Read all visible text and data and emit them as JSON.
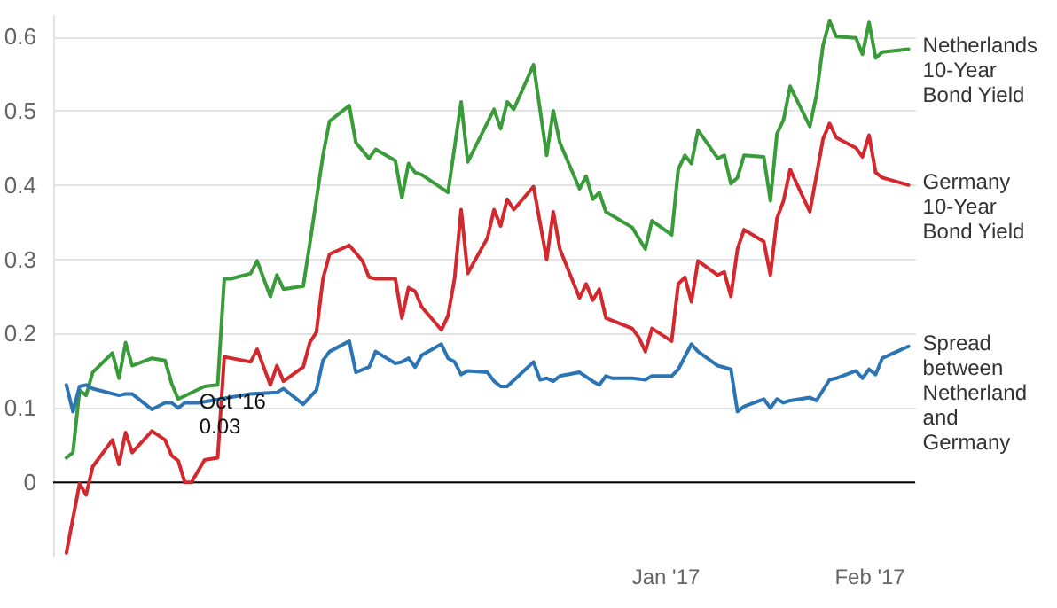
{
  "chart_data": {
    "type": "line",
    "xlim": [
      "2016-09-30",
      "2017-02-08"
    ],
    "xticks": [
      {
        "value": "2017-01-01",
        "label": "Jan '17"
      },
      {
        "value": "2017-02-01",
        "label": "Feb '17"
      }
    ],
    "ylim": [
      -0.1,
      0.63
    ],
    "yticks": [
      0,
      0.1,
      0.2,
      0.3,
      0.4,
      0.5,
      0.6
    ],
    "grid": "y",
    "ref_lines": [
      {
        "axis": "y",
        "value": 0,
        "color": "#000000"
      }
    ],
    "annotations": [
      {
        "text": "Oct '16\n0.03",
        "x": "2016-10-23",
        "y": 0.03
      }
    ],
    "series": [
      {
        "name": "Netherlands 10-Year Bond Yield",
        "color": "#3a9b3a",
        "x": [
          "2016-10-02",
          "2016-10-03",
          "2016-10-04",
          "2016-10-05",
          "2016-10-06",
          "2016-10-09",
          "2016-10-10",
          "2016-10-11",
          "2016-10-12",
          "2016-10-15",
          "2016-10-17",
          "2016-10-18",
          "2016-10-19",
          "2016-10-23",
          "2016-10-25",
          "2016-10-26",
          "2016-10-27",
          "2016-10-30",
          "2016-10-31",
          "2016-11-02",
          "2016-11-03",
          "2016-11-04",
          "2016-11-07",
          "2016-11-08",
          "2016-11-10",
          "2016-11-11",
          "2016-11-14",
          "2016-11-15",
          "2016-11-17",
          "2016-11-18",
          "2016-11-21",
          "2016-11-22",
          "2016-11-23",
          "2016-11-24",
          "2016-11-25",
          "2016-11-29",
          "2016-12-01",
          "2016-12-02",
          "2016-12-06",
          "2016-12-07",
          "2016-12-08",
          "2016-12-09",
          "2016-12-12",
          "2016-12-14",
          "2016-12-15",
          "2016-12-16",
          "2016-12-19",
          "2016-12-20",
          "2016-12-21",
          "2016-12-22",
          "2016-12-23",
          "2016-12-27",
          "2016-12-29",
          "2016-12-30",
          "2017-01-02",
          "2017-01-03",
          "2017-01-04",
          "2017-01-05",
          "2017-01-06",
          "2017-01-09",
          "2017-01-10",
          "2017-01-11",
          "2017-01-12",
          "2017-01-13",
          "2017-01-16",
          "2017-01-17",
          "2017-01-18",
          "2017-01-19",
          "2017-01-20",
          "2017-01-23",
          "2017-01-24",
          "2017-01-25",
          "2017-01-26",
          "2017-01-27",
          "2017-01-30",
          "2017-01-31",
          "2017-02-01",
          "2017-02-02",
          "2017-02-03",
          "2017-02-07"
        ],
        "values": [
          0.033,
          0.04,
          0.124,
          0.117,
          0.148,
          0.174,
          0.14,
          0.188,
          0.157,
          0.167,
          0.164,
          0.133,
          0.112,
          0.129,
          0.131,
          0.274,
          0.274,
          0.281,
          0.298,
          0.25,
          0.279,
          0.26,
          0.264,
          0.321,
          0.44,
          0.486,
          0.507,
          0.457,
          0.436,
          0.448,
          0.433,
          0.383,
          0.429,
          0.417,
          0.414,
          0.39,
          0.512,
          0.431,
          0.502,
          0.476,
          0.512,
          0.502,
          0.562,
          0.44,
          0.5,
          0.457,
          0.395,
          0.412,
          0.381,
          0.39,
          0.364,
          0.343,
          0.314,
          0.352,
          0.333,
          0.421,
          0.44,
          0.429,
          0.474,
          0.436,
          0.44,
          0.402,
          0.41,
          0.44,
          0.438,
          0.379,
          0.469,
          0.488,
          0.533,
          0.479,
          0.521,
          0.588,
          0.621,
          0.6,
          0.598,
          0.576,
          0.619,
          0.571,
          0.579,
          0.583
        ]
      },
      {
        "name": "Germany 10-Year Bond Yield",
        "color": "#d2282e",
        "x": [
          "2016-10-02",
          "2016-10-04",
          "2016-10-05",
          "2016-10-06",
          "2016-10-09",
          "2016-10-10",
          "2016-10-11",
          "2016-10-12",
          "2016-10-15",
          "2016-10-17",
          "2016-10-18",
          "2016-10-19",
          "2016-10-20",
          "2016-10-21",
          "2016-10-23",
          "2016-10-25",
          "2016-10-26",
          "2016-10-30",
          "2016-10-31",
          "2016-11-02",
          "2016-11-03",
          "2016-11-04",
          "2016-11-07",
          "2016-11-08",
          "2016-11-09",
          "2016-11-10",
          "2016-11-11",
          "2016-11-14",
          "2016-11-16",
          "2016-11-17",
          "2016-11-18",
          "2016-11-21",
          "2016-11-22",
          "2016-11-23",
          "2016-11-24",
          "2016-11-25",
          "2016-11-28",
          "2016-11-29",
          "2016-11-30",
          "2016-12-01",
          "2016-12-02",
          "2016-12-05",
          "2016-12-06",
          "2016-12-07",
          "2016-12-08",
          "2016-12-09",
          "2016-12-12",
          "2016-12-14",
          "2016-12-15",
          "2016-12-16",
          "2016-12-19",
          "2016-12-20",
          "2016-12-21",
          "2016-12-22",
          "2016-12-23",
          "2016-12-27",
          "2016-12-28",
          "2016-12-29",
          "2016-12-30",
          "2017-01-02",
          "2017-01-03",
          "2017-01-04",
          "2017-01-05",
          "2017-01-06",
          "2017-01-09",
          "2017-01-10",
          "2017-01-11",
          "2017-01-12",
          "2017-01-13",
          "2017-01-16",
          "2017-01-17",
          "2017-01-18",
          "2017-01-19",
          "2017-01-20",
          "2017-01-23",
          "2017-01-25",
          "2017-01-26",
          "2017-01-27",
          "2017-01-30",
          "2017-01-31",
          "2017-02-01",
          "2017-02-02",
          "2017-02-03",
          "2017-02-07"
        ],
        "values": [
          -0.095,
          -0.002,
          -0.017,
          0.021,
          0.057,
          0.024,
          0.067,
          0.04,
          0.069,
          0.057,
          0.036,
          0.029,
          0.0,
          0.0,
          0.03,
          0.033,
          0.169,
          0.162,
          0.179,
          0.131,
          0.157,
          0.136,
          0.155,
          0.188,
          0.202,
          0.274,
          0.307,
          0.319,
          0.298,
          0.276,
          0.274,
          0.274,
          0.221,
          0.262,
          0.257,
          0.236,
          0.205,
          0.224,
          0.274,
          0.367,
          0.281,
          0.329,
          0.367,
          0.345,
          0.381,
          0.367,
          0.398,
          0.3,
          0.364,
          0.314,
          0.248,
          0.267,
          0.245,
          0.26,
          0.221,
          0.207,
          0.195,
          0.176,
          0.207,
          0.19,
          0.267,
          0.276,
          0.243,
          0.298,
          0.279,
          0.283,
          0.25,
          0.314,
          0.34,
          0.324,
          0.279,
          0.355,
          0.379,
          0.421,
          0.364,
          0.462,
          0.483,
          0.464,
          0.45,
          0.438,
          0.467,
          0.417,
          0.41,
          0.4
        ]
      },
      {
        "name": "Spread between Netherland and Germany",
        "color": "#2c75b5",
        "x": [
          "2016-10-02",
          "2016-10-03",
          "2016-10-04",
          "2016-10-05",
          "2016-10-06",
          "2016-10-10",
          "2016-10-11",
          "2016-10-12",
          "2016-10-15",
          "2016-10-17",
          "2016-10-18",
          "2016-10-19",
          "2016-10-20",
          "2016-10-22",
          "2016-10-30",
          "2016-11-03",
          "2016-11-04",
          "2016-11-07",
          "2016-11-09",
          "2016-11-10",
          "2016-11-11",
          "2016-11-14",
          "2016-11-15",
          "2016-11-17",
          "2016-11-18",
          "2016-11-21",
          "2016-11-22",
          "2016-11-23",
          "2016-11-24",
          "2016-11-25",
          "2016-11-28",
          "2016-11-29",
          "2016-11-30",
          "2016-12-01",
          "2016-12-02",
          "2016-12-05",
          "2016-12-06",
          "2016-12-07",
          "2016-12-08",
          "2016-12-12",
          "2016-12-13",
          "2016-12-14",
          "2016-12-15",
          "2016-12-16",
          "2016-12-19",
          "2016-12-21",
          "2016-12-22",
          "2016-12-23",
          "2016-12-24",
          "2016-12-27",
          "2016-12-29",
          "2016-12-30",
          "2017-01-02",
          "2017-01-03",
          "2017-01-05",
          "2017-01-06",
          "2017-01-09",
          "2017-01-11",
          "2017-01-12",
          "2017-01-13",
          "2017-01-16",
          "2017-01-17",
          "2017-01-18",
          "2017-01-19",
          "2017-01-20",
          "2017-01-23",
          "2017-01-24",
          "2017-01-26",
          "2017-01-27",
          "2017-01-30",
          "2017-01-31",
          "2017-02-01",
          "2017-02-02",
          "2017-02-03",
          "2017-02-07"
        ],
        "values": [
          0.131,
          0.095,
          0.129,
          0.131,
          0.126,
          0.117,
          0.119,
          0.119,
          0.098,
          0.107,
          0.107,
          0.1,
          0.107,
          0.107,
          0.119,
          0.121,
          0.126,
          0.105,
          0.124,
          0.164,
          0.176,
          0.19,
          0.148,
          0.155,
          0.176,
          0.16,
          0.162,
          0.167,
          0.155,
          0.171,
          0.186,
          0.167,
          0.162,
          0.145,
          0.15,
          0.148,
          0.136,
          0.129,
          0.129,
          0.162,
          0.138,
          0.14,
          0.136,
          0.143,
          0.148,
          0.136,
          0.131,
          0.143,
          0.14,
          0.14,
          0.138,
          0.143,
          0.143,
          0.152,
          0.186,
          0.176,
          0.157,
          0.152,
          0.095,
          0.102,
          0.112,
          0.1,
          0.112,
          0.107,
          0.11,
          0.114,
          0.11,
          0.138,
          0.14,
          0.15,
          0.14,
          0.152,
          0.145,
          0.167,
          0.183
        ]
      }
    ]
  }
}
